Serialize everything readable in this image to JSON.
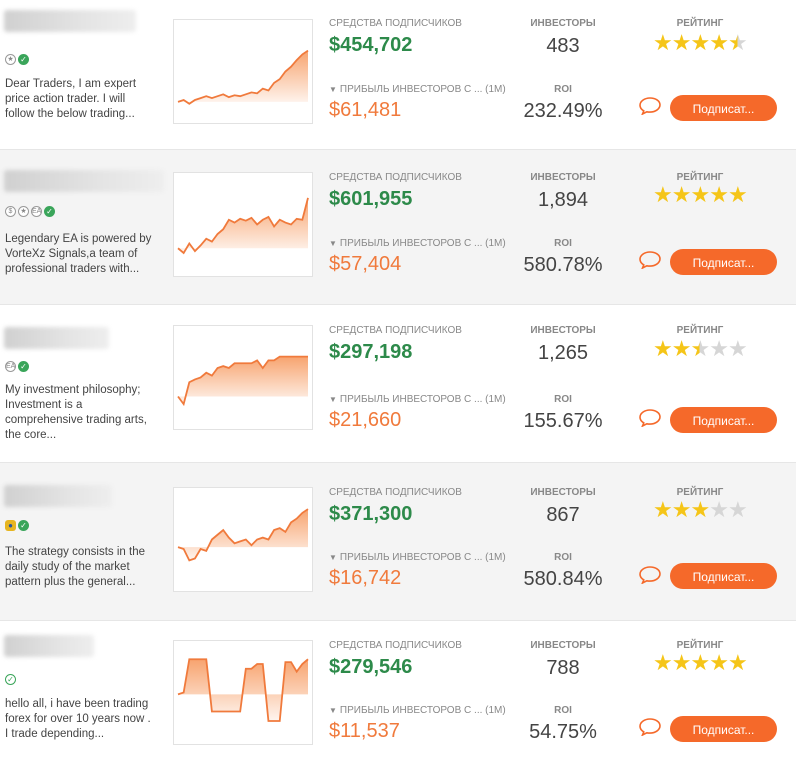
{
  "traders": [
    {
      "badges": [
        "star-icon",
        "verified-icon"
      ],
      "description": "Dear Traders, I am expert price action trader. I will follow the below trading...",
      "funds_label": "СРЕДСТВА ПОДПИСЧИКОВ",
      "funds": "$454,702",
      "profit_label": "ПРИБЫЛЬ ИНВЕСТОРОВ С ... (1М)",
      "profit": "$61,481",
      "investors_label": "ИНВЕСТОРЫ",
      "investors": "483",
      "roi_label": "ROI",
      "roi": "232.49%",
      "rating_label": "РЕЙТИНГ",
      "rating": 4.5,
      "subscribe_label": "Подписат...",
      "equity": [
        0.18,
        0.2,
        0.16,
        0.2,
        0.22,
        0.24,
        0.22,
        0.24,
        0.26,
        0.23,
        0.25,
        0.24,
        0.26,
        0.28,
        0.27,
        0.32,
        0.3,
        0.38,
        0.42,
        0.5,
        0.55,
        0.62,
        0.68,
        0.72
      ]
    },
    {
      "badges": [
        "dollar-icon",
        "star-icon",
        "ea-icon",
        "verified-icon"
      ],
      "description": "Legendary EA is powered by VorteXz Signals,a team of professional traders with...",
      "funds_label": "СРЕДСТВА ПОДПИСЧИКОВ",
      "funds": "$601,955",
      "profit_label": "ПРИБЫЛЬ ИНВЕСТОРОВ С ... (1М)",
      "profit": "$57,404",
      "investors_label": "ИНВЕСТОРЫ",
      "investors": "1,894",
      "roi_label": "ROI",
      "roi": "580.78%",
      "rating_label": "РЕЙТИНГ",
      "rating": 5,
      "subscribe_label": "Подписат...",
      "equity": [
        0.25,
        0.2,
        0.3,
        0.22,
        0.28,
        0.35,
        0.32,
        0.4,
        0.45,
        0.55,
        0.52,
        0.56,
        0.54,
        0.57,
        0.5,
        0.55,
        0.58,
        0.48,
        0.55,
        0.52,
        0.5,
        0.56,
        0.55,
        0.78
      ]
    },
    {
      "badges": [
        "ea-icon",
        "verified-icon"
      ],
      "description": "My investment philosophy; Investment is a comprehensive trading arts, the core...",
      "funds_label": "СРЕДСТВА ПОДПИСЧИКОВ",
      "funds": "$297,198",
      "profit_label": "ПРИБЫЛЬ ИНВЕСТОРОВ С ... (1М)",
      "profit": "$21,660",
      "investors_label": "ИНВЕСТОРЫ",
      "investors": "1,265",
      "roi_label": "ROI",
      "roi": "155.67%",
      "rating_label": "РЕЙТИНГ",
      "rating": 2.5,
      "subscribe_label": "Подписат...",
      "equity": [
        0.3,
        0.22,
        0.45,
        0.48,
        0.5,
        0.55,
        0.52,
        0.6,
        0.62,
        0.6,
        0.65,
        0.65,
        0.65,
        0.65,
        0.68,
        0.6,
        0.68,
        0.68,
        0.72,
        0.72,
        0.72,
        0.72,
        0.72,
        0.72
      ]
    },
    {
      "badges": [
        "medal-icon",
        "verified-icon"
      ],
      "description": "The strategy consists in the daily study of the market pattern plus the general...",
      "funds_label": "СРЕДСТВА ПОДПИСЧИКОВ",
      "funds": "$371,300",
      "profit_label": "ПРИБЫЛЬ ИНВЕСТОРОВ С ... (1М)",
      "profit": "$16,742",
      "investors_label": "ИНВЕСТОРЫ",
      "investors": "867",
      "roi_label": "ROI",
      "roi": "580.84%",
      "rating_label": "РЕЙТИНГ",
      "rating": 3,
      "subscribe_label": "Подписат...",
      "equity": [
        0.42,
        0.4,
        0.28,
        0.3,
        0.4,
        0.38,
        0.5,
        0.55,
        0.6,
        0.52,
        0.46,
        0.48,
        0.5,
        0.44,
        0.5,
        0.52,
        0.5,
        0.6,
        0.62,
        0.58,
        0.68,
        0.72,
        0.78,
        0.82
      ]
    },
    {
      "badges": [
        "verified-outline-icon"
      ],
      "description": "hello all, i have been trading forex for over 10 years now . I trade depending...",
      "funds_label": "СРЕДСТВА ПОДПИСЧИКОВ",
      "funds": "$279,546",
      "profit_label": "ПРИБЫЛЬ ИНВЕСТОРОВ С ... (1М)",
      "profit": "$11,537",
      "investors_label": "ИНВЕСТОРЫ",
      "investors": "788",
      "roi_label": "ROI",
      "roi": "54.75%",
      "rating_label": "РЕЙТИНГ",
      "rating": 5,
      "subscribe_label": "Подписат...",
      "equity": [
        0.48,
        0.5,
        0.85,
        0.85,
        0.85,
        0.85,
        0.3,
        0.3,
        0.3,
        0.3,
        0.3,
        0.3,
        0.75,
        0.75,
        0.8,
        0.8,
        0.2,
        0.2,
        0.2,
        0.82,
        0.82,
        0.72,
        0.8,
        0.85
      ]
    }
  ]
}
